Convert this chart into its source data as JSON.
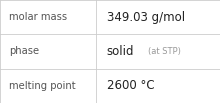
{
  "rows": [
    {
      "label": "molar mass",
      "value": "349.03 g/mol",
      "suffix": null
    },
    {
      "label": "phase",
      "value": "solid",
      "suffix": " (at STP)"
    },
    {
      "label": "melting point",
      "value": "2600 °C",
      "suffix": null
    }
  ],
  "background_color": "#ffffff",
  "border_color": "#cccccc",
  "label_color": "#555555",
  "value_color": "#222222",
  "suffix_color": "#999999",
  "label_fontsize": 7.2,
  "value_fontsize": 8.5,
  "suffix_fontsize": 6.0,
  "col_split": 0.435
}
